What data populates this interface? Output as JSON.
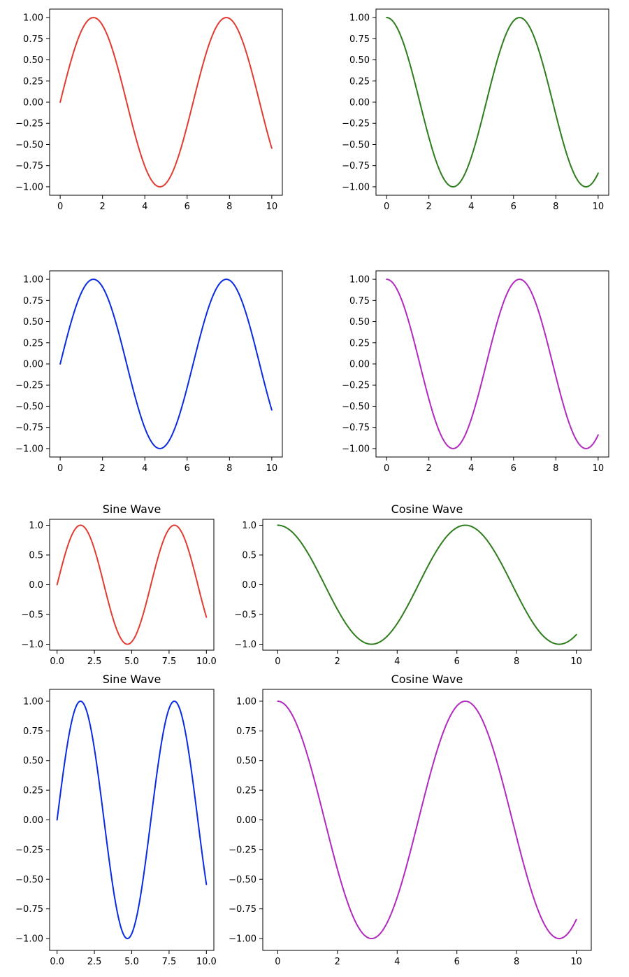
{
  "figure": {
    "background": "#ffffff",
    "axes_color": "#000000"
  },
  "chart_data": [
    {
      "type": "line",
      "function": "sin",
      "title": "",
      "series": [
        {
          "color": "#e03c31",
          "x_range": [
            0,
            10
          ]
        }
      ],
      "xlim": [
        -0.5,
        10.5
      ],
      "ylim": [
        -1.1,
        1.1
      ],
      "xticks": [
        0,
        2,
        4,
        6,
        8,
        10
      ],
      "xtick_labels": [
        "0",
        "2",
        "4",
        "6",
        "8",
        "10"
      ],
      "yticks": [
        -1,
        -0.75,
        -0.5,
        -0.25,
        0,
        0.25,
        0.5,
        0.75,
        1
      ],
      "ytick_labels": [
        "−1.00",
        "−0.75",
        "−0.50",
        "−0.25",
        "0.00",
        "0.25",
        "0.50",
        "0.75",
        "1.00"
      ],
      "grid": false
    },
    {
      "type": "line",
      "function": "cos",
      "title": "",
      "series": [
        {
          "color": "#2e7d1c",
          "x_range": [
            0,
            10
          ]
        }
      ],
      "xlim": [
        -0.5,
        10.5
      ],
      "ylim": [
        -1.1,
        1.1
      ],
      "xticks": [
        0,
        2,
        4,
        6,
        8,
        10
      ],
      "xtick_labels": [
        "0",
        "2",
        "4",
        "6",
        "8",
        "10"
      ],
      "yticks": [
        -1,
        -0.75,
        -0.5,
        -0.25,
        0,
        0.25,
        0.5,
        0.75,
        1
      ],
      "ytick_labels": [
        "−1.00",
        "−0.75",
        "−0.50",
        "−0.25",
        "0.00",
        "0.25",
        "0.50",
        "0.75",
        "1.00"
      ],
      "grid": false
    },
    {
      "type": "line",
      "function": "sin",
      "title": "",
      "series": [
        {
          "color": "#0a2be0",
          "x_range": [
            0,
            10
          ]
        }
      ],
      "xlim": [
        -0.5,
        10.5
      ],
      "ylim": [
        -1.1,
        1.1
      ],
      "xticks": [
        0,
        2,
        4,
        6,
        8,
        10
      ],
      "xtick_labels": [
        "0",
        "2",
        "4",
        "6",
        "8",
        "10"
      ],
      "yticks": [
        -1,
        -0.75,
        -0.5,
        -0.25,
        0,
        0.25,
        0.5,
        0.75,
        1
      ],
      "ytick_labels": [
        "−1.00",
        "−0.75",
        "−0.50",
        "−0.25",
        "0.00",
        "0.25",
        "0.50",
        "0.75",
        "1.00"
      ],
      "grid": false
    },
    {
      "type": "line",
      "function": "cos",
      "title": "",
      "series": [
        {
          "color": "#b02bbd",
          "x_range": [
            0,
            10
          ]
        }
      ],
      "xlim": [
        -0.5,
        10.5
      ],
      "ylim": [
        -1.1,
        1.1
      ],
      "xticks": [
        0,
        2,
        4,
        6,
        8,
        10
      ],
      "xtick_labels": [
        "0",
        "2",
        "4",
        "6",
        "8",
        "10"
      ],
      "yticks": [
        -1,
        -0.75,
        -0.5,
        -0.25,
        0,
        0.25,
        0.5,
        0.75,
        1
      ],
      "ytick_labels": [
        "−1.00",
        "−0.75",
        "−0.50",
        "−0.25",
        "0.00",
        "0.25",
        "0.50",
        "0.75",
        "1.00"
      ],
      "grid": false
    },
    {
      "type": "line",
      "function": "sin",
      "title": "Sine Wave",
      "series": [
        {
          "color": "#e03c31",
          "x_range": [
            0,
            10
          ]
        }
      ],
      "xlim": [
        -0.5,
        10.5
      ],
      "ylim": [
        -1.1,
        1.1
      ],
      "xticks": [
        0,
        2.5,
        5,
        7.5,
        10
      ],
      "xtick_labels": [
        "0.0",
        "2.5",
        "5.0",
        "7.5",
        "10.0"
      ],
      "yticks": [
        -1,
        -0.5,
        0,
        0.5,
        1
      ],
      "ytick_labels": [
        "−1.0",
        "−0.5",
        "0.0",
        "0.5",
        "1.0"
      ],
      "grid": false
    },
    {
      "type": "line",
      "function": "cos",
      "title": "Cosine Wave",
      "series": [
        {
          "color": "#2e7d1c",
          "x_range": [
            0,
            10
          ]
        }
      ],
      "xlim": [
        -0.5,
        10.5
      ],
      "ylim": [
        -1.1,
        1.1
      ],
      "xticks": [
        0,
        2,
        4,
        6,
        8,
        10
      ],
      "xtick_labels": [
        "0",
        "2",
        "4",
        "6",
        "8",
        "10"
      ],
      "yticks": [
        -1,
        -0.5,
        0,
        0.5,
        1
      ],
      "ytick_labels": [
        "−1.0",
        "−0.5",
        "0.0",
        "0.5",
        "1.0"
      ],
      "grid": false
    },
    {
      "type": "line",
      "function": "sin",
      "title": "Sine Wave",
      "series": [
        {
          "color": "#0a2be0",
          "x_range": [
            0,
            10
          ]
        }
      ],
      "xlim": [
        -0.5,
        10.5
      ],
      "ylim": [
        -1.1,
        1.1
      ],
      "xticks": [
        0,
        2.5,
        5,
        7.5,
        10
      ],
      "xtick_labels": [
        "0.0",
        "2.5",
        "5.0",
        "7.5",
        "10.0"
      ],
      "yticks": [
        -1,
        -0.75,
        -0.5,
        -0.25,
        0,
        0.25,
        0.5,
        0.75,
        1
      ],
      "ytick_labels": [
        "−1.00",
        "−0.75",
        "−0.50",
        "−0.25",
        "0.00",
        "0.25",
        "0.50",
        "0.75",
        "1.00"
      ],
      "grid": false
    },
    {
      "type": "line",
      "function": "cos",
      "title": "Cosine Wave",
      "series": [
        {
          "color": "#b02bbd",
          "x_range": [
            0,
            10
          ]
        }
      ],
      "xlim": [
        -0.5,
        10.5
      ],
      "ylim": [
        -1.1,
        1.1
      ],
      "xticks": [
        0,
        2,
        4,
        6,
        8,
        10
      ],
      "xtick_labels": [
        "0",
        "2",
        "4",
        "6",
        "8",
        "10"
      ],
      "yticks": [
        -1,
        -0.75,
        -0.5,
        -0.25,
        0,
        0.25,
        0.5,
        0.75,
        1
      ],
      "ytick_labels": [
        "−1.00",
        "−0.75",
        "−0.50",
        "−0.25",
        "0.00",
        "0.25",
        "0.50",
        "0.75",
        "1.00"
      ],
      "grid": false
    }
  ]
}
